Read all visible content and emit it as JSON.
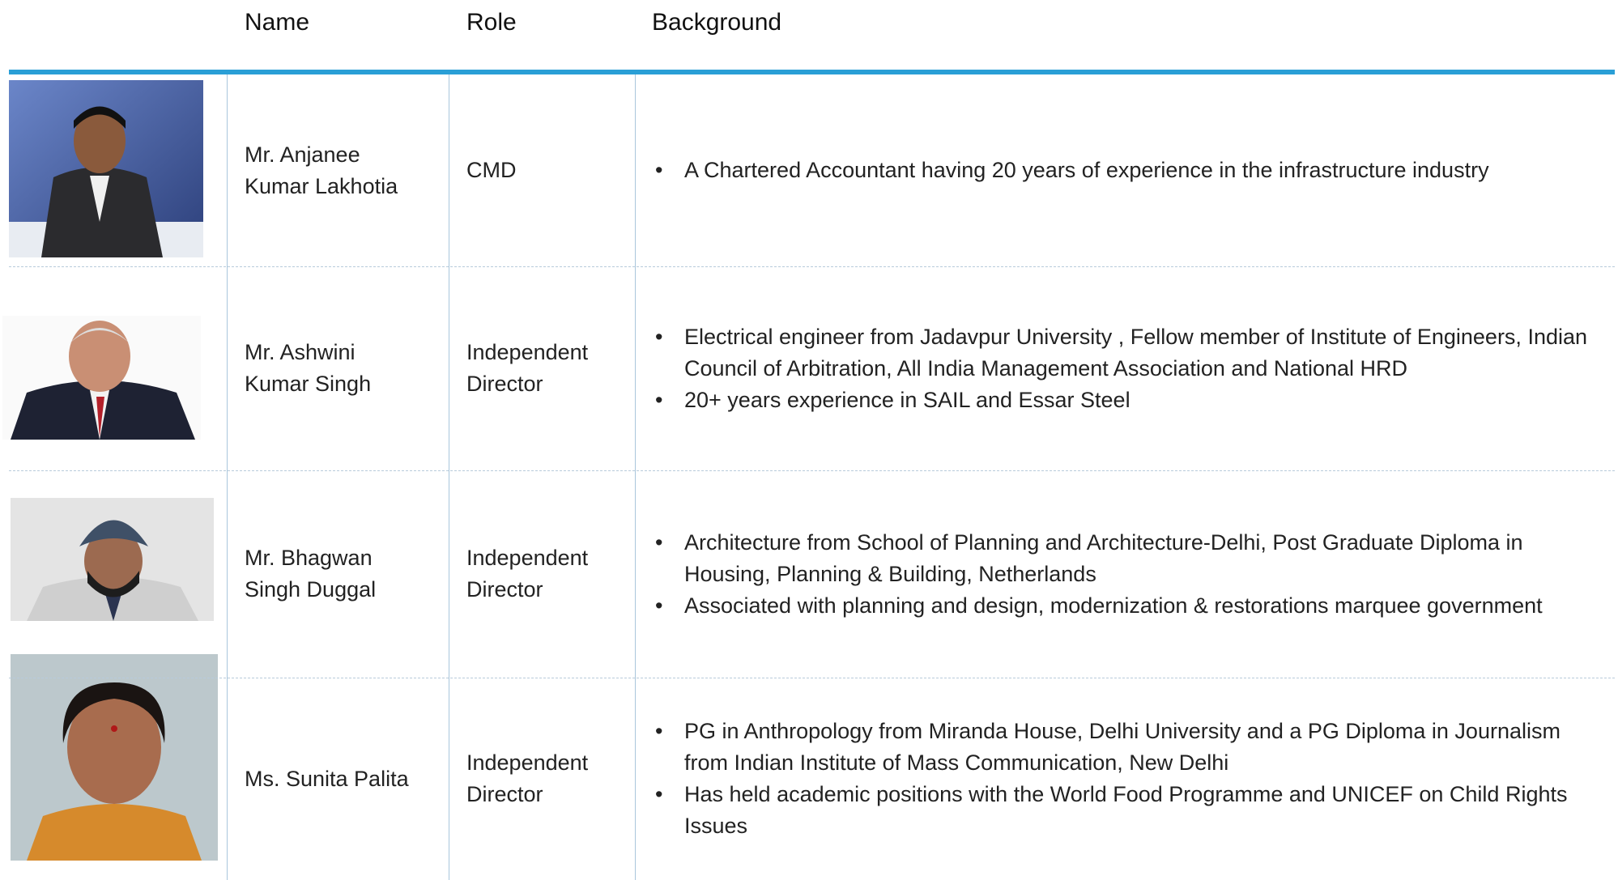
{
  "header": {
    "name": "Name",
    "role": "Role",
    "background": "Background"
  },
  "rows": [
    {
      "name": [
        "Mr. Anjanee",
        "Kumar Lakhotia"
      ],
      "role": [
        "CMD"
      ],
      "background": [
        "A Chartered Accountant having 20 years of experience in the infrastructure industry"
      ]
    },
    {
      "name": [
        "Mr. Ashwini",
        "Kumar Singh"
      ],
      "role": [
        "Independent",
        "Director"
      ],
      "background": [
        "Electrical engineer from Jadavpur University , Fellow member of Institute of Engineers, Indian Council of Arbitration, All India Management Association and National HRD",
        "20+ years experience in SAIL and Essar Steel"
      ]
    },
    {
      "name": [
        "Mr. Bhagwan",
        "Singh Duggal"
      ],
      "role": [
        "Independent",
        "Director"
      ],
      "background": [
        "Architecture from School of Planning and Architecture-Delhi, Post Graduate Diploma in Housing, Planning & Building, Netherlands",
        "Associated with planning and design, modernization & restorations marquee government"
      ]
    },
    {
      "name": [
        "Ms. Sunita Palita"
      ],
      "role": [
        "Independent",
        "Director"
      ],
      "background": [
        "PG in Anthropology from Miranda House, Delhi University and a PG Diploma in Journalism from Indian Institute of Mass Communication, New Delhi",
        "Has held academic positions with the World Food Programme and UNICEF on Child Rights Issues"
      ]
    }
  ]
}
